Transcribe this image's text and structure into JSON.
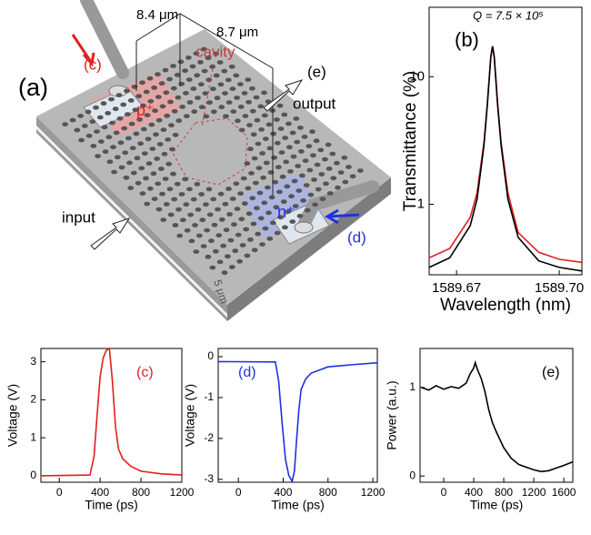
{
  "diagram": {
    "panel_label": "(a)",
    "dim_left": "8.4 μm",
    "dim_right": "8.7 μm",
    "probe_c": "(c)",
    "cavity": "cavity",
    "output_label": "(e)",
    "output": "output",
    "p_region": "p⁺",
    "n_region": "n⁺",
    "input": "input",
    "probe_d": "(d)",
    "scale_bar": "5 μm"
  },
  "chart_data": [
    {
      "type": "line",
      "panel_label": "(b)",
      "annotation": "Q = 7.5 × 10⁵",
      "x_label": "Wavelength (nm)",
      "y_label": "Transmittance (%)",
      "yscale": "log",
      "x": [
        1589.662,
        1589.668,
        1589.674,
        1589.676,
        1589.678,
        1589.679,
        1589.68,
        1589.6805,
        1589.681,
        1589.682,
        1589.683,
        1589.685,
        1589.688,
        1589.694,
        1589.7,
        1589.7066
      ],
      "series": [
        {
          "color": "#e02020",
          "values": [
            0.38,
            0.45,
            0.79,
            1.23,
            3.06,
            6.2,
            14.4,
            17.3,
            14.4,
            6.2,
            3.06,
            1.23,
            0.6,
            0.42,
            0.37,
            0.35
          ]
        },
        {
          "color": "#000000",
          "values": [
            0.32,
            0.38,
            0.68,
            1.1,
            2.9,
            6.0,
            14.2,
            17.3,
            14.2,
            6.0,
            2.9,
            1.1,
            0.55,
            0.36,
            0.32,
            0.3
          ]
        }
      ],
      "xlim": [
        1589.662,
        1589.7066
      ],
      "ylim": [
        0.28,
        35
      ],
      "xticks": [
        1589.67,
        {
          "value": 1589.7,
          "label": "1589.70"
        }
      ],
      "yticks": [
        1,
        10
      ]
    },
    {
      "type": "line",
      "panel_label": "(c)",
      "x_label": "Time (ps)",
      "y_label": "Voltage (V)",
      "color": "#e02020",
      "x": [
        -180,
        300,
        340,
        370,
        400,
        430,
        460,
        490,
        520,
        550,
        580,
        620,
        700,
        800,
        1000,
        1200
      ],
      "values": [
        0,
        0.02,
        0.5,
        1.6,
        2.6,
        3.1,
        3.3,
        3.35,
        2.5,
        1.3,
        0.7,
        0.45,
        0.25,
        0.12,
        0.05,
        0.02
      ],
      "xlim": [
        -180,
        1200
      ],
      "ylim": [
        -0.17,
        3.35
      ],
      "xticks": [
        0,
        400,
        800,
        1200
      ],
      "yticks": [
        0,
        1,
        2,
        3
      ]
    },
    {
      "type": "line",
      "panel_label": "(d)",
      "x_label": "Time (ps)",
      "y_label": "Voltage (V)",
      "color": "#2030e0",
      "x": [
        -180,
        330,
        360,
        390,
        420,
        450,
        480,
        500,
        520,
        540,
        560,
        600,
        650,
        800,
        1000,
        1240
      ],
      "values": [
        -0.12,
        -0.13,
        -0.6,
        -1.6,
        -2.5,
        -2.9,
        -3.05,
        -2.8,
        -2.0,
        -1.3,
        -0.8,
        -0.55,
        -0.4,
        -0.25,
        -0.2,
        -0.15
      ],
      "xlim": [
        -180,
        1240
      ],
      "ylim": [
        -3.07,
        0.2
      ],
      "xticks": [
        0,
        400,
        800,
        1200
      ],
      "yticks": [
        -3,
        -2,
        -1,
        0
      ]
    },
    {
      "type": "line",
      "panel_label": "(e)",
      "x_label": "Time (ps)",
      "y_label": "Power (a.u.)",
      "color": "#000000",
      "x": [
        -300,
        -200,
        -100,
        0,
        100,
        200,
        300,
        350,
        400,
        420,
        450,
        500,
        550,
        600,
        650,
        700,
        800,
        900,
        1000,
        1100,
        1200,
        1300,
        1400,
        1500,
        1600,
        1720
      ],
      "values": [
        1.0,
        0.97,
        1.02,
        0.98,
        1.01,
        0.99,
        1.05,
        1.15,
        1.22,
        1.28,
        1.2,
        1.1,
        0.95,
        0.75,
        0.6,
        0.5,
        0.32,
        0.2,
        0.13,
        0.1,
        0.07,
        0.05,
        0.06,
        0.09,
        0.12,
        0.16
      ],
      "xlim": [
        -315,
        1720
      ],
      "ylim": [
        -0.07,
        1.44
      ],
      "xticks": [
        0,
        400,
        800,
        1200,
        1600
      ],
      "yticks": [
        0,
        1
      ]
    }
  ]
}
